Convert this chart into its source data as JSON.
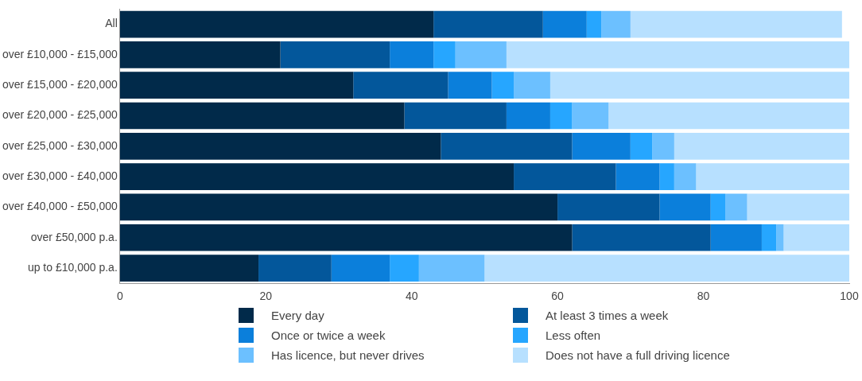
{
  "chart_data": {
    "type": "bar",
    "orientation": "horizontal",
    "stacked": true,
    "grid": false,
    "legend": "bottom",
    "categories": [
      "All",
      "over £10,000 - £15,000",
      "over £15,000 - £20,000",
      "over £20,000 - £25,000",
      "over £25,000 - £30,000",
      "over £30,000 - £40,000",
      "over £40,000 - £50,000",
      "over £50,000 p.a.",
      "up to £10,000 p.a."
    ],
    "xlim": [
      0,
      100
    ],
    "xticks": [
      0,
      20,
      40,
      60,
      80,
      100
    ],
    "series": [
      {
        "name": "Every day",
        "color": "#012a4a",
        "values": [
          43,
          22,
          32,
          39,
          44,
          54,
          60,
          62,
          19
        ]
      },
      {
        "name": "At least 3 times a week",
        "color": "#03579b",
        "values": [
          15,
          15,
          13,
          14,
          18,
          14,
          14,
          19,
          10
        ]
      },
      {
        "name": "Once or twice a week",
        "color": "#0b7fdb",
        "values": [
          6,
          6,
          6,
          6,
          8,
          6,
          7,
          7,
          8
        ]
      },
      {
        "name": "Less often",
        "color": "#26a6ff",
        "values": [
          2,
          3,
          3,
          3,
          3,
          2,
          2,
          2,
          4
        ]
      },
      {
        "name": "Has licence, but never drives",
        "color": "#6cc0ff",
        "values": [
          4,
          7,
          5,
          5,
          3,
          3,
          3,
          1,
          9
        ]
      },
      {
        "name": "Does not have a full driving licence",
        "color": "#b7e0ff",
        "values": [
          29,
          47,
          41,
          33,
          24,
          21,
          14,
          9,
          50
        ]
      }
    ]
  }
}
